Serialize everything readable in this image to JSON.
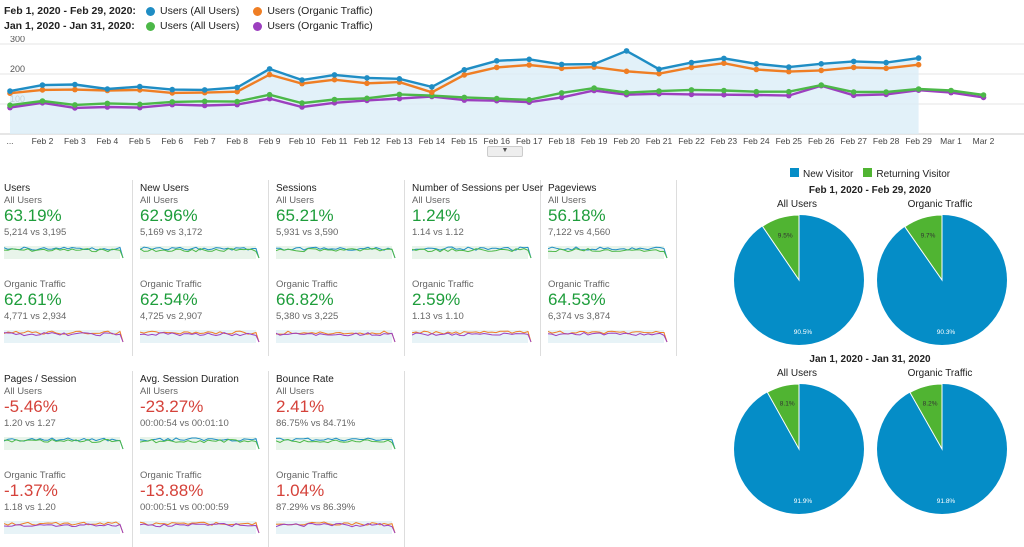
{
  "colors": {
    "blue": "#1f8dc4",
    "orange": "#ef7e24",
    "green": "#4cb848",
    "purple": "#9c3fbf",
    "positive": "#1e9d3b",
    "negative": "#d5423a",
    "new_visitor": "#058dc7",
    "returning_visitor": "#50b432"
  },
  "legend": {
    "rows": [
      {
        "period": "Feb 1, 2020 - Feb 29, 2020:",
        "items": [
          {
            "label": "Users (All Users)",
            "color": "#1f8dc4"
          },
          {
            "label": "Users (Organic Traffic)",
            "color": "#ef7e24"
          }
        ]
      },
      {
        "period": "Jan 1, 2020 - Jan 31, 2020:",
        "items": [
          {
            "label": "Users (All Users)",
            "color": "#4cb848"
          },
          {
            "label": "Users (Organic Traffic)",
            "color": "#9c3fbf"
          }
        ]
      }
    ]
  },
  "chart_data": {
    "type": "line",
    "y_ticks": [
      "300",
      "200",
      "100"
    ],
    "ylim": [
      0,
      300
    ],
    "x_labels": [
      "...",
      "Feb 2",
      "Feb 3",
      "Feb 4",
      "Feb 5",
      "Feb 6",
      "Feb 7",
      "Feb 8",
      "Feb 9",
      "Feb 10",
      "Feb 11",
      "Feb 12",
      "Feb 13",
      "Feb 14",
      "Feb 15",
      "Feb 16",
      "Feb 17",
      "Feb 18",
      "Feb 19",
      "Feb 20",
      "Feb 21",
      "Feb 22",
      "Feb 23",
      "Feb 24",
      "Feb 25",
      "Feb 26",
      "Feb 27",
      "Feb 28",
      "Feb 29",
      "Mar 1",
      "Mar 2"
    ],
    "series": [
      {
        "name": "Users (All Users) Feb 1, 2020 - Feb 29, 2020",
        "color": "#1f8dc4",
        "fill": true,
        "values": [
          143,
          163,
          165,
          150,
          158,
          148,
          147,
          155,
          217,
          180,
          197,
          187,
          184,
          157,
          214,
          244,
          249,
          232,
          233,
          277,
          216,
          238,
          252,
          234,
          223,
          234,
          242,
          238,
          253
        ]
      },
      {
        "name": "Users (Organic Traffic) Feb 1, 2020 - Feb 29, 2020",
        "color": "#ef7e24",
        "fill": false,
        "values": [
          136,
          147,
          148,
          145,
          147,
          137,
          138,
          141,
          198,
          168,
          181,
          169,
          173,
          139,
          197,
          222,
          230,
          219,
          223,
          209,
          201,
          222,
          236,
          215,
          208,
          212,
          222,
          219,
          231
        ]
      },
      {
        "name": "Users (All Users) Jan 1, 2020 - Jan 31, 2020",
        "color": "#4cb848",
        "fill": false,
        "values": [
          96,
          110,
          97,
          102,
          99,
          107,
          109,
          108,
          131,
          103,
          115,
          119,
          132,
          128,
          122,
          118,
          114,
          137,
          153,
          138,
          143,
          147,
          145,
          141,
          141,
          163,
          140,
          140,
          150,
          145,
          130
        ]
      },
      {
        "name": "Users (Organic Traffic) Jan 1, 2020 - Jan 31, 2020",
        "color": "#9c3fbf",
        "fill": false,
        "values": [
          88,
          104,
          87,
          90,
          88,
          98,
          95,
          98,
          118,
          90,
          104,
          112,
          118,
          125,
          113,
          111,
          106,
          122,
          145,
          131,
          134,
          132,
          131,
          130,
          128,
          161,
          129,
          132,
          146,
          138,
          122
        ]
      }
    ]
  },
  "metrics_row1": [
    {
      "name": "Users",
      "segments": [
        {
          "segment": "All Users",
          "pct": "63.19%",
          "cmp": "5,214 vs 3,195",
          "tone": "pos",
          "lines": [
            "#1f8dc4",
            "#4cb848"
          ]
        },
        {
          "segment": "Organic Traffic",
          "pct": "62.61%",
          "cmp": "4,771 vs 2,934",
          "tone": "pos",
          "lines": [
            "#ef7e24",
            "#9c3fbf"
          ]
        }
      ]
    },
    {
      "name": "New Users",
      "segments": [
        {
          "segment": "All Users",
          "pct": "62.96%",
          "cmp": "5,169 vs 3,172",
          "tone": "pos",
          "lines": [
            "#1f8dc4",
            "#4cb848"
          ]
        },
        {
          "segment": "Organic Traffic",
          "pct": "62.54%",
          "cmp": "4,725 vs 2,907",
          "tone": "pos",
          "lines": [
            "#ef7e24",
            "#9c3fbf"
          ]
        }
      ]
    },
    {
      "name": "Sessions",
      "segments": [
        {
          "segment": "All Users",
          "pct": "65.21%",
          "cmp": "5,931 vs 3,590",
          "tone": "pos",
          "lines": [
            "#1f8dc4",
            "#4cb848"
          ]
        },
        {
          "segment": "Organic Traffic",
          "pct": "66.82%",
          "cmp": "5,380 vs 3,225",
          "tone": "pos",
          "lines": [
            "#ef7e24",
            "#9c3fbf"
          ]
        }
      ]
    },
    {
      "name": "Number of Sessions per User",
      "segments": [
        {
          "segment": "All Users",
          "pct": "1.24%",
          "cmp": "1.14 vs 1.12",
          "tone": "pos",
          "lines": [
            "#1f8dc4",
            "#4cb848"
          ]
        },
        {
          "segment": "Organic Traffic",
          "pct": "2.59%",
          "cmp": "1.13 vs 1.10",
          "tone": "pos",
          "lines": [
            "#ef7e24",
            "#9c3fbf"
          ]
        }
      ]
    },
    {
      "name": "Pageviews",
      "segments": [
        {
          "segment": "All Users",
          "pct": "56.18%",
          "cmp": "7,122 vs 4,560",
          "tone": "pos",
          "lines": [
            "#1f8dc4",
            "#4cb848"
          ]
        },
        {
          "segment": "Organic Traffic",
          "pct": "64.53%",
          "cmp": "6,374 vs 3,874",
          "tone": "pos",
          "lines": [
            "#ef7e24",
            "#9c3fbf"
          ]
        }
      ]
    }
  ],
  "metrics_row2": [
    {
      "name": "Pages / Session",
      "segments": [
        {
          "segment": "All Users",
          "pct": "-5.46%",
          "cmp": "1.20 vs 1.27",
          "tone": "neg",
          "lines": [
            "#1f8dc4",
            "#4cb848"
          ]
        },
        {
          "segment": "Organic Traffic",
          "pct": "-1.37%",
          "cmp": "1.18 vs 1.20",
          "tone": "neg",
          "lines": [
            "#ef7e24",
            "#9c3fbf"
          ]
        }
      ]
    },
    {
      "name": "Avg. Session Duration",
      "segments": [
        {
          "segment": "All Users",
          "pct": "-23.27%",
          "cmp": "00:00:54 vs 00:01:10",
          "tone": "neg",
          "lines": [
            "#1f8dc4",
            "#4cb848"
          ]
        },
        {
          "segment": "Organic Traffic",
          "pct": "-13.88%",
          "cmp": "00:00:51 vs 00:00:59",
          "tone": "neg",
          "lines": [
            "#ef7e24",
            "#9c3fbf"
          ]
        }
      ]
    },
    {
      "name": "Bounce Rate",
      "segments": [
        {
          "segment": "All Users",
          "pct": "2.41%",
          "cmp": "86.75% vs 84.71%",
          "tone": "neg",
          "lines": [
            "#1f8dc4",
            "#4cb848"
          ]
        },
        {
          "segment": "Organic Traffic",
          "pct": "1.04%",
          "cmp": "87.29% vs 86.39%",
          "tone": "neg",
          "lines": [
            "#ef7e24",
            "#9c3fbf"
          ]
        }
      ]
    }
  ],
  "pie_legend": {
    "new": "New Visitor",
    "returning": "Returning Visitor"
  },
  "pie_groups": [
    {
      "period": "Feb 1, 2020 - Feb 29, 2020",
      "pies": [
        {
          "segment": "All Users",
          "new_pct": 90.5,
          "ret_pct": 9.5,
          "new_label": "90.5%",
          "ret_label": "9.5%"
        },
        {
          "segment": "Organic Traffic",
          "new_pct": 90.3,
          "ret_pct": 9.7,
          "new_label": "90.3%",
          "ret_label": "9.7%"
        }
      ]
    },
    {
      "period": "Jan 1, 2020 - Jan 31, 2020",
      "pies": [
        {
          "segment": "All Users",
          "new_pct": 91.9,
          "ret_pct": 8.1,
          "new_label": "91.9%",
          "ret_label": "8.1%"
        },
        {
          "segment": "Organic Traffic",
          "new_pct": 91.8,
          "ret_pct": 8.2,
          "new_label": "91.8%",
          "ret_label": "8.2%"
        }
      ]
    }
  ]
}
